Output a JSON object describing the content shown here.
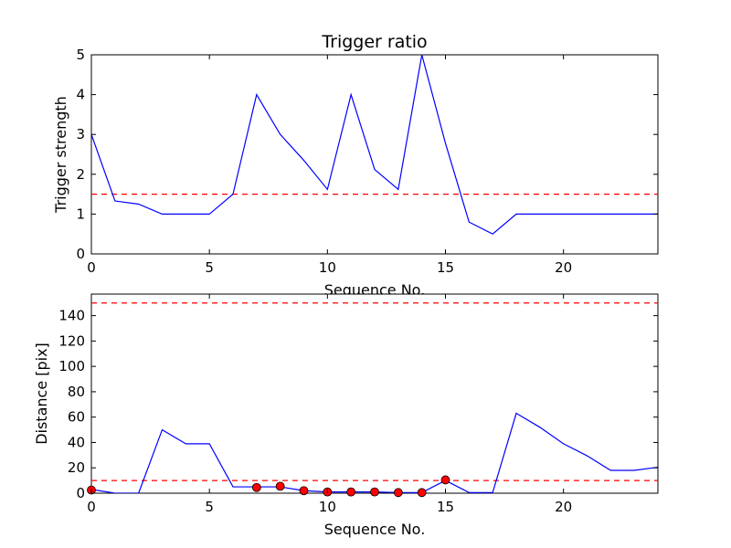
{
  "chart_data": [
    {
      "type": "line",
      "title": "Trigger ratio",
      "xlabel": "Sequence No.",
      "ylabel": "Trigger strength",
      "xlim": [
        0,
        24
      ],
      "ylim": [
        0,
        5
      ],
      "xticks": [
        "0",
        "5",
        "10",
        "15",
        "20"
      ],
      "yticks": [
        "0",
        "1",
        "2",
        "3",
        "4",
        "5"
      ],
      "grid": false,
      "series": [
        {
          "color": "#0000ff",
          "x": [
            0,
            1,
            2,
            3,
            4,
            5,
            6,
            7,
            8,
            9,
            10,
            11,
            12,
            13,
            14,
            15,
            16,
            17,
            18,
            19,
            20,
            21,
            22,
            23,
            24
          ],
          "y": [
            3.0,
            1.33,
            1.25,
            1.0,
            1.0,
            1.0,
            1.5,
            4.0,
            3.0,
            2.35,
            1.62,
            4.0,
            2.12,
            1.62,
            5.0,
            2.78,
            0.8,
            0.5,
            1.0,
            1.0,
            1.0,
            1.0,
            1.0,
            1.0,
            1.0
          ]
        }
      ],
      "thresholds": [
        {
          "y": 1.5,
          "color": "#ff0000",
          "style": "dashed"
        }
      ]
    },
    {
      "type": "line",
      "title": "",
      "xlabel": "Sequence No.",
      "ylabel": "Distance [pix]",
      "xlim": [
        0,
        24
      ],
      "ylim": [
        0,
        157
      ],
      "xticks": [
        "0",
        "5",
        "10",
        "15",
        "20"
      ],
      "yticks": [
        "0",
        "20",
        "40",
        "60",
        "80",
        "100",
        "120",
        "140"
      ],
      "grid": false,
      "series": [
        {
          "color": "#0000ff",
          "x": [
            0,
            1,
            2,
            3,
            4,
            5,
            6,
            7,
            8,
            9,
            10,
            11,
            12,
            13,
            14,
            15,
            16,
            17,
            18,
            19,
            20,
            21,
            22,
            23,
            24
          ],
          "y": [
            3,
            0,
            0,
            50,
            39,
            39,
            5,
            5,
            5,
            2,
            1,
            1,
            1,
            0.5,
            0.5,
            10,
            0.5,
            0.5,
            63,
            52,
            39,
            29.5,
            18,
            18,
            20.5
          ]
        },
        {
          "color": "#ff0000",
          "marker": "circle",
          "x": [
            0,
            7,
            8,
            9,
            10,
            11,
            12,
            13,
            14,
            15
          ],
          "y": [
            2.5,
            4.5,
            5.5,
            2,
            1,
            1,
            1,
            0.5,
            0.5,
            10.5
          ]
        }
      ],
      "thresholds": [
        {
          "y": 10,
          "color": "#ff0000",
          "style": "dashed"
        },
        {
          "y": 150,
          "color": "#ff0000",
          "style": "dashed"
        }
      ]
    }
  ]
}
